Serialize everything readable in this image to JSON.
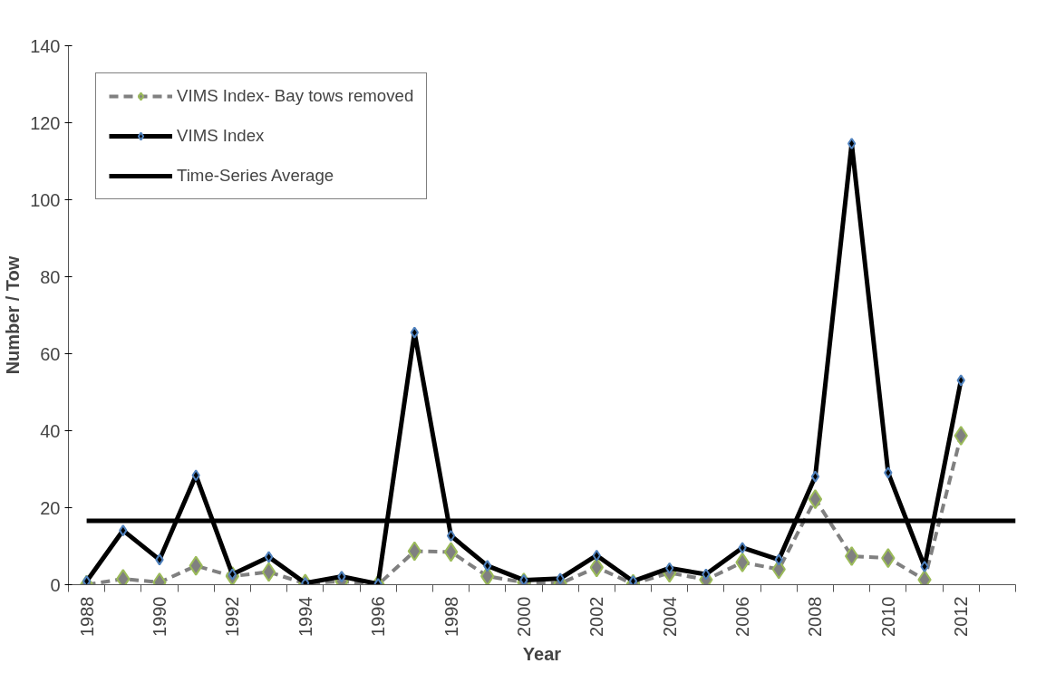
{
  "chart_data": {
    "type": "line",
    "xlabel": "Year",
    "ylabel": "Number / Tow",
    "x": [
      1988,
      1989,
      1990,
      1991,
      1992,
      1993,
      1994,
      1995,
      1996,
      1997,
      1998,
      1999,
      2000,
      2001,
      2002,
      2003,
      2004,
      2005,
      2006,
      2007,
      2008,
      2009,
      2010,
      2011,
      2012
    ],
    "series": [
      {
        "name": "VIMS Index- Bay tows removed",
        "color": "#808080",
        "line_style": "dashed",
        "values": [
          0,
          1.5,
          0.6,
          4.9,
          2.2,
          3.3,
          0.3,
          0.9,
          0,
          8.7,
          8.5,
          2.2,
          0.6,
          0.3,
          4.5,
          0.2,
          3.1,
          1.3,
          5.8,
          4.0,
          22.2,
          7.4,
          6.9,
          1.3,
          38.7
        ]
      },
      {
        "name": "VIMS Index",
        "color": "#000000",
        "line_style": "solid",
        "values": [
          0.9,
          14.1,
          6.5,
          28.4,
          2.7,
          7.2,
          0.4,
          2.1,
          0.2,
          65.5,
          12.7,
          4.9,
          1.2,
          1.6,
          7.6,
          0.9,
          4.3,
          2.7,
          9.6,
          6.5,
          28.1,
          114.6,
          29.1,
          4.7,
          53.1
        ]
      }
    ],
    "ref_lines": [
      {
        "axis": "y",
        "value": 16.6,
        "label": "Time-Series Average",
        "color": "#000000",
        "line_style": "solid"
      }
    ],
    "marker": "diamond",
    "xlim": [
      1987.5,
      2013.5
    ],
    "xticks": [
      1988,
      1990,
      1992,
      1994,
      1996,
      1998,
      2000,
      2002,
      2004,
      2006,
      2008,
      2010,
      2012
    ],
    "ylim": [
      0,
      140
    ],
    "yticks": [
      0,
      20,
      40,
      60,
      80,
      100,
      120,
      140
    ],
    "grid": false,
    "legend": "top left"
  }
}
